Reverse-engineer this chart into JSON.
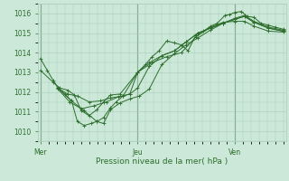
{
  "xlabel": "Pression niveau de la mer( hPa )",
  "background_color": "#cce8d8",
  "grid_color": "#aaccbb",
  "line_color": "#2d6e2d",
  "text_color": "#2d6e2d",
  "ylim": [
    1009.5,
    1016.5
  ],
  "yticks": [
    1010,
    1011,
    1012,
    1013,
    1014,
    1015,
    1016
  ],
  "xlim": [
    -0.03,
    2.53
  ],
  "x_ticks": [
    0.0,
    1.0,
    2.0
  ],
  "x_labels": [
    "Mer",
    "Jeu",
    "Ven"
  ],
  "series": [
    [
      0.0,
      1013.7,
      0.07,
      1013.1,
      0.13,
      1012.6,
      0.18,
      1012.2,
      0.25,
      1011.9,
      0.32,
      1011.55,
      0.38,
      1010.5,
      0.45,
      1010.3,
      0.52,
      1010.4,
      0.58,
      1010.5,
      0.65,
      1010.7,
      0.72,
      1011.2,
      0.78,
      1011.5,
      0.85,
      1011.8,
      0.92,
      1011.9,
      1.0,
      1013.0,
      1.08,
      1013.4,
      1.15,
      1013.8,
      1.22,
      1014.1,
      1.3,
      1014.6,
      1.38,
      1014.5,
      1.45,
      1014.4,
      1.52,
      1014.1,
      1.6,
      1014.9,
      1.68,
      1015.1,
      1.75,
      1015.35,
      1.82,
      1015.5,
      1.9,
      1015.9,
      1.95,
      1015.95,
      2.0,
      1016.05,
      2.07,
      1016.1,
      2.13,
      1015.85,
      2.2,
      1015.8,
      2.27,
      1015.5,
      2.35,
      1015.4,
      2.42,
      1015.3,
      2.5,
      1015.2
    ],
    [
      0.0,
      1013.1,
      0.13,
      1012.5,
      0.2,
      1012.2,
      0.28,
      1012.1,
      0.35,
      1011.85,
      0.42,
      1011.05,
      0.5,
      1010.8,
      0.58,
      1011.1,
      0.65,
      1011.5,
      0.72,
      1011.85,
      0.82,
      1011.9,
      1.0,
      1013.0,
      1.12,
      1013.5,
      1.25,
      1013.85,
      1.38,
      1014.1,
      1.5,
      1014.55,
      1.62,
      1015.0,
      1.75,
      1015.25,
      1.88,
      1015.5,
      2.0,
      1015.7,
      2.1,
      1015.85,
      2.2,
      1015.55,
      2.35,
      1015.25,
      2.5,
      1015.1
    ],
    [
      0.18,
      1012.2,
      0.28,
      1011.9,
      0.38,
      1011.8,
      0.5,
      1011.5,
      0.62,
      1011.55,
      0.72,
      1011.7,
      0.85,
      1011.8,
      1.0,
      1013.0,
      1.15,
      1013.5,
      1.3,
      1013.8,
      1.45,
      1014.0,
      1.6,
      1014.8,
      1.75,
      1015.3,
      1.88,
      1015.55,
      2.0,
      1015.6,
      2.1,
      1015.6,
      2.2,
      1015.35,
      2.35,
      1015.1,
      2.5,
      1015.05
    ],
    [
      0.18,
      1012.15,
      0.3,
      1011.5,
      0.42,
      1011.15,
      0.55,
      1011.3,
      0.68,
      1011.5,
      0.8,
      1011.75,
      0.92,
      1011.9,
      1.0,
      1012.2,
      1.12,
      1013.3,
      1.25,
      1013.85,
      1.38,
      1014.1,
      1.5,
      1014.55,
      1.62,
      1015.0,
      1.75,
      1015.25,
      1.88,
      1015.5,
      2.0,
      1015.7,
      2.1,
      1015.85,
      2.2,
      1015.55,
      2.35,
      1015.25,
      2.5,
      1015.1
    ],
    [
      0.18,
      1012.2,
      0.32,
      1011.55,
      0.45,
      1011.05,
      0.58,
      1010.5,
      0.65,
      1010.4,
      0.72,
      1011.1,
      0.82,
      1011.45,
      0.92,
      1011.65,
      1.02,
      1011.8,
      1.12,
      1012.15,
      1.25,
      1013.4,
      1.38,
      1013.95,
      1.5,
      1014.4,
      1.62,
      1014.75,
      1.75,
      1015.15,
      1.88,
      1015.5,
      2.0,
      1015.75,
      2.1,
      1015.9,
      2.2,
      1015.6,
      2.35,
      1015.3,
      2.5,
      1015.15
    ]
  ]
}
